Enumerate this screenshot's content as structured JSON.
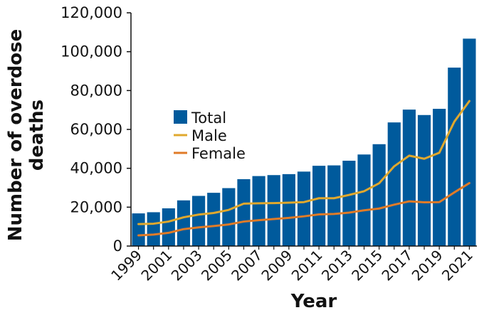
{
  "chart_data": {
    "type": "bar",
    "title": "",
    "xlabel": "Year",
    "ylabel": "Number of overdose deaths",
    "ylim": [
      0,
      120000
    ],
    "yticks": [
      "0",
      "20,000",
      "40,000",
      "60,000",
      "80,000",
      "100,000",
      "120,000"
    ],
    "ytick_values": [
      0,
      20000,
      40000,
      60000,
      80000,
      100000,
      120000
    ],
    "xtick_labels": [
      "1999",
      "2001",
      "2003",
      "2005",
      "2007",
      "2009",
      "2011",
      "2013",
      "2015",
      "2017",
      "2019",
      "2021"
    ],
    "categories": [
      "1999",
      "2000",
      "2001",
      "2002",
      "2003",
      "2004",
      "2005",
      "2006",
      "2007",
      "2008",
      "2009",
      "2010",
      "2011",
      "2012",
      "2013",
      "2014",
      "2015",
      "2016",
      "2017",
      "2018",
      "2019",
      "2020",
      "2021"
    ],
    "grid": false,
    "legend_position": "center-left",
    "series": [
      {
        "name": "Total",
        "type": "bar",
        "color": "#005a9c",
        "values": [
          16800,
          17400,
          19400,
          23500,
          25800,
          27400,
          29800,
          34400,
          36000,
          36500,
          37000,
          38300,
          41300,
          41500,
          43900,
          47100,
          52400,
          63600,
          70200,
          67400,
          70600,
          91800,
          106700
        ]
      },
      {
        "name": "Male",
        "type": "line",
        "color": "#e0a82e",
        "values": [
          11300,
          11500,
          12600,
          14800,
          16200,
          17000,
          18600,
          21800,
          22000,
          22100,
          22300,
          22600,
          24600,
          24600,
          26300,
          28200,
          32300,
          41000,
          46500,
          44900,
          48000,
          64000,
          74600
        ]
      },
      {
        "name": "Female",
        "type": "line",
        "color": "#e07b28",
        "values": [
          5500,
          5900,
          6800,
          8700,
          9600,
          10300,
          11100,
          12600,
          13300,
          13900,
          14500,
          15300,
          16300,
          16500,
          17200,
          18400,
          19300,
          21300,
          23000,
          22500,
          22600,
          27600,
          32400
        ]
      }
    ]
  }
}
